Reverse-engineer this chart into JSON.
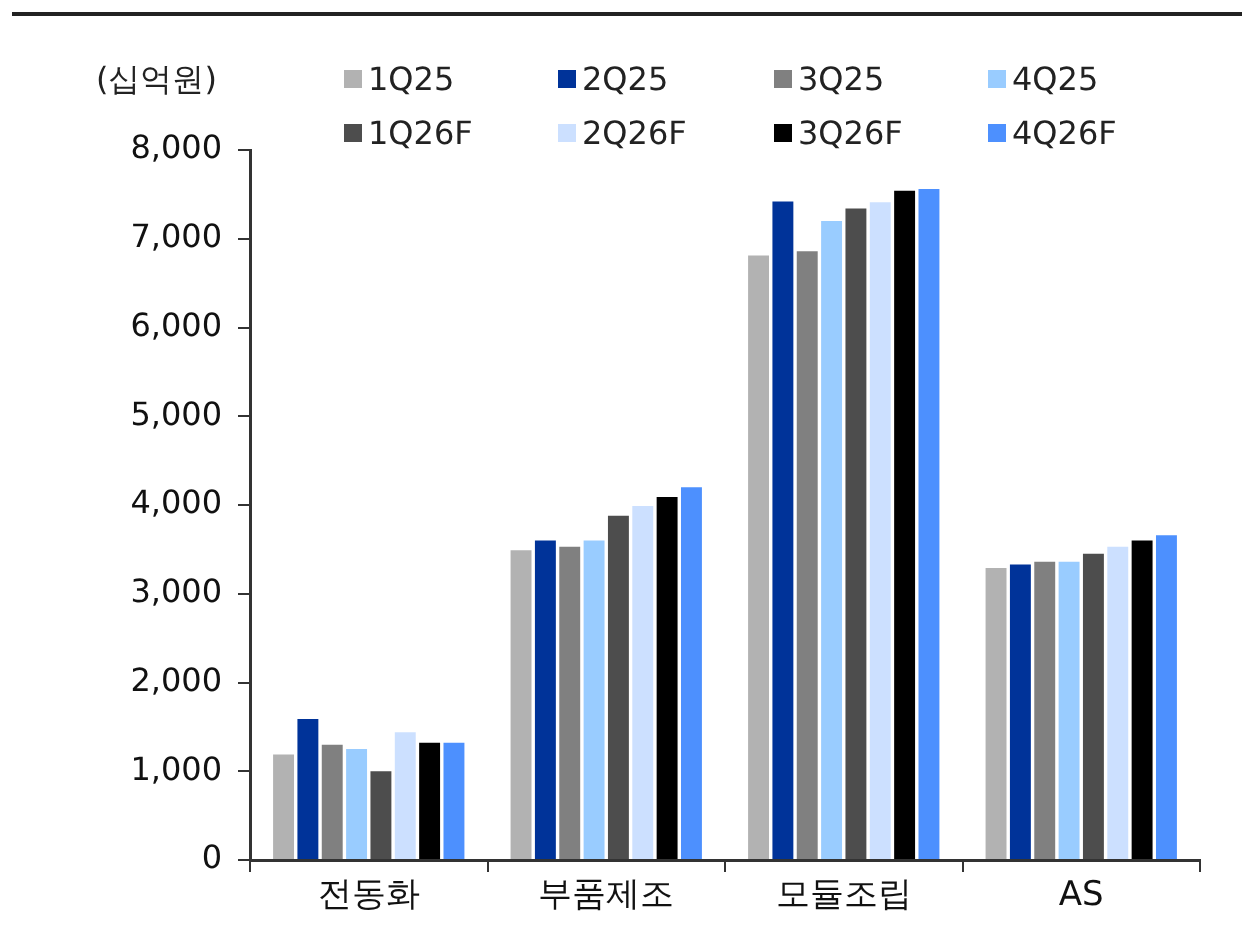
{
  "chart_data": {
    "type": "bar",
    "ylabel": "(십억원)",
    "categories": [
      "전동화",
      "부품제조",
      "모듈조립",
      "AS"
    ],
    "series": [
      {
        "name": "1Q25",
        "color": "#b2b2b2",
        "values": [
          1190,
          3490,
          6810,
          3290
        ]
      },
      {
        "name": "2Q25",
        "color": "#003399",
        "values": [
          1590,
          3600,
          7420,
          3330
        ]
      },
      {
        "name": "3Q25",
        "color": "#808080",
        "values": [
          1300,
          3530,
          6860,
          3360
        ]
      },
      {
        "name": "4Q25",
        "color": "#99ccff",
        "values": [
          1250,
          3600,
          7200,
          3360
        ]
      },
      {
        "name": "1Q26F",
        "color": "#4d4d4d",
        "values": [
          1000,
          3880,
          7340,
          3450
        ]
      },
      {
        "name": "2Q26F",
        "color": "#cce0ff",
        "values": [
          1440,
          3990,
          7410,
          3530
        ]
      },
      {
        "name": "3Q26F",
        "color": "#000000",
        "values": [
          1320,
          4090,
          7540,
          3600
        ]
      },
      {
        "name": "4Q26F",
        "color": "#4d90fe",
        "values": [
          1320,
          4200,
          7560,
          3660
        ]
      }
    ],
    "ylim": [
      0,
      8000
    ],
    "yticks": [
      0,
      {
        "value": 1000,
        "label": "1,000"
      },
      {
        "value": 2000,
        "label": "2,000"
      },
      {
        "value": 3000,
        "label": "3,000"
      },
      {
        "value": 4000,
        "label": "4,000"
      },
      {
        "value": 5000,
        "label": "5,000"
      },
      {
        "value": 6000,
        "label": "6,000"
      },
      {
        "value": 7000,
        "label": "7,000"
      },
      {
        "value": 8000,
        "label": "8,000"
      }
    ],
    "grid": false,
    "legend": "top"
  }
}
